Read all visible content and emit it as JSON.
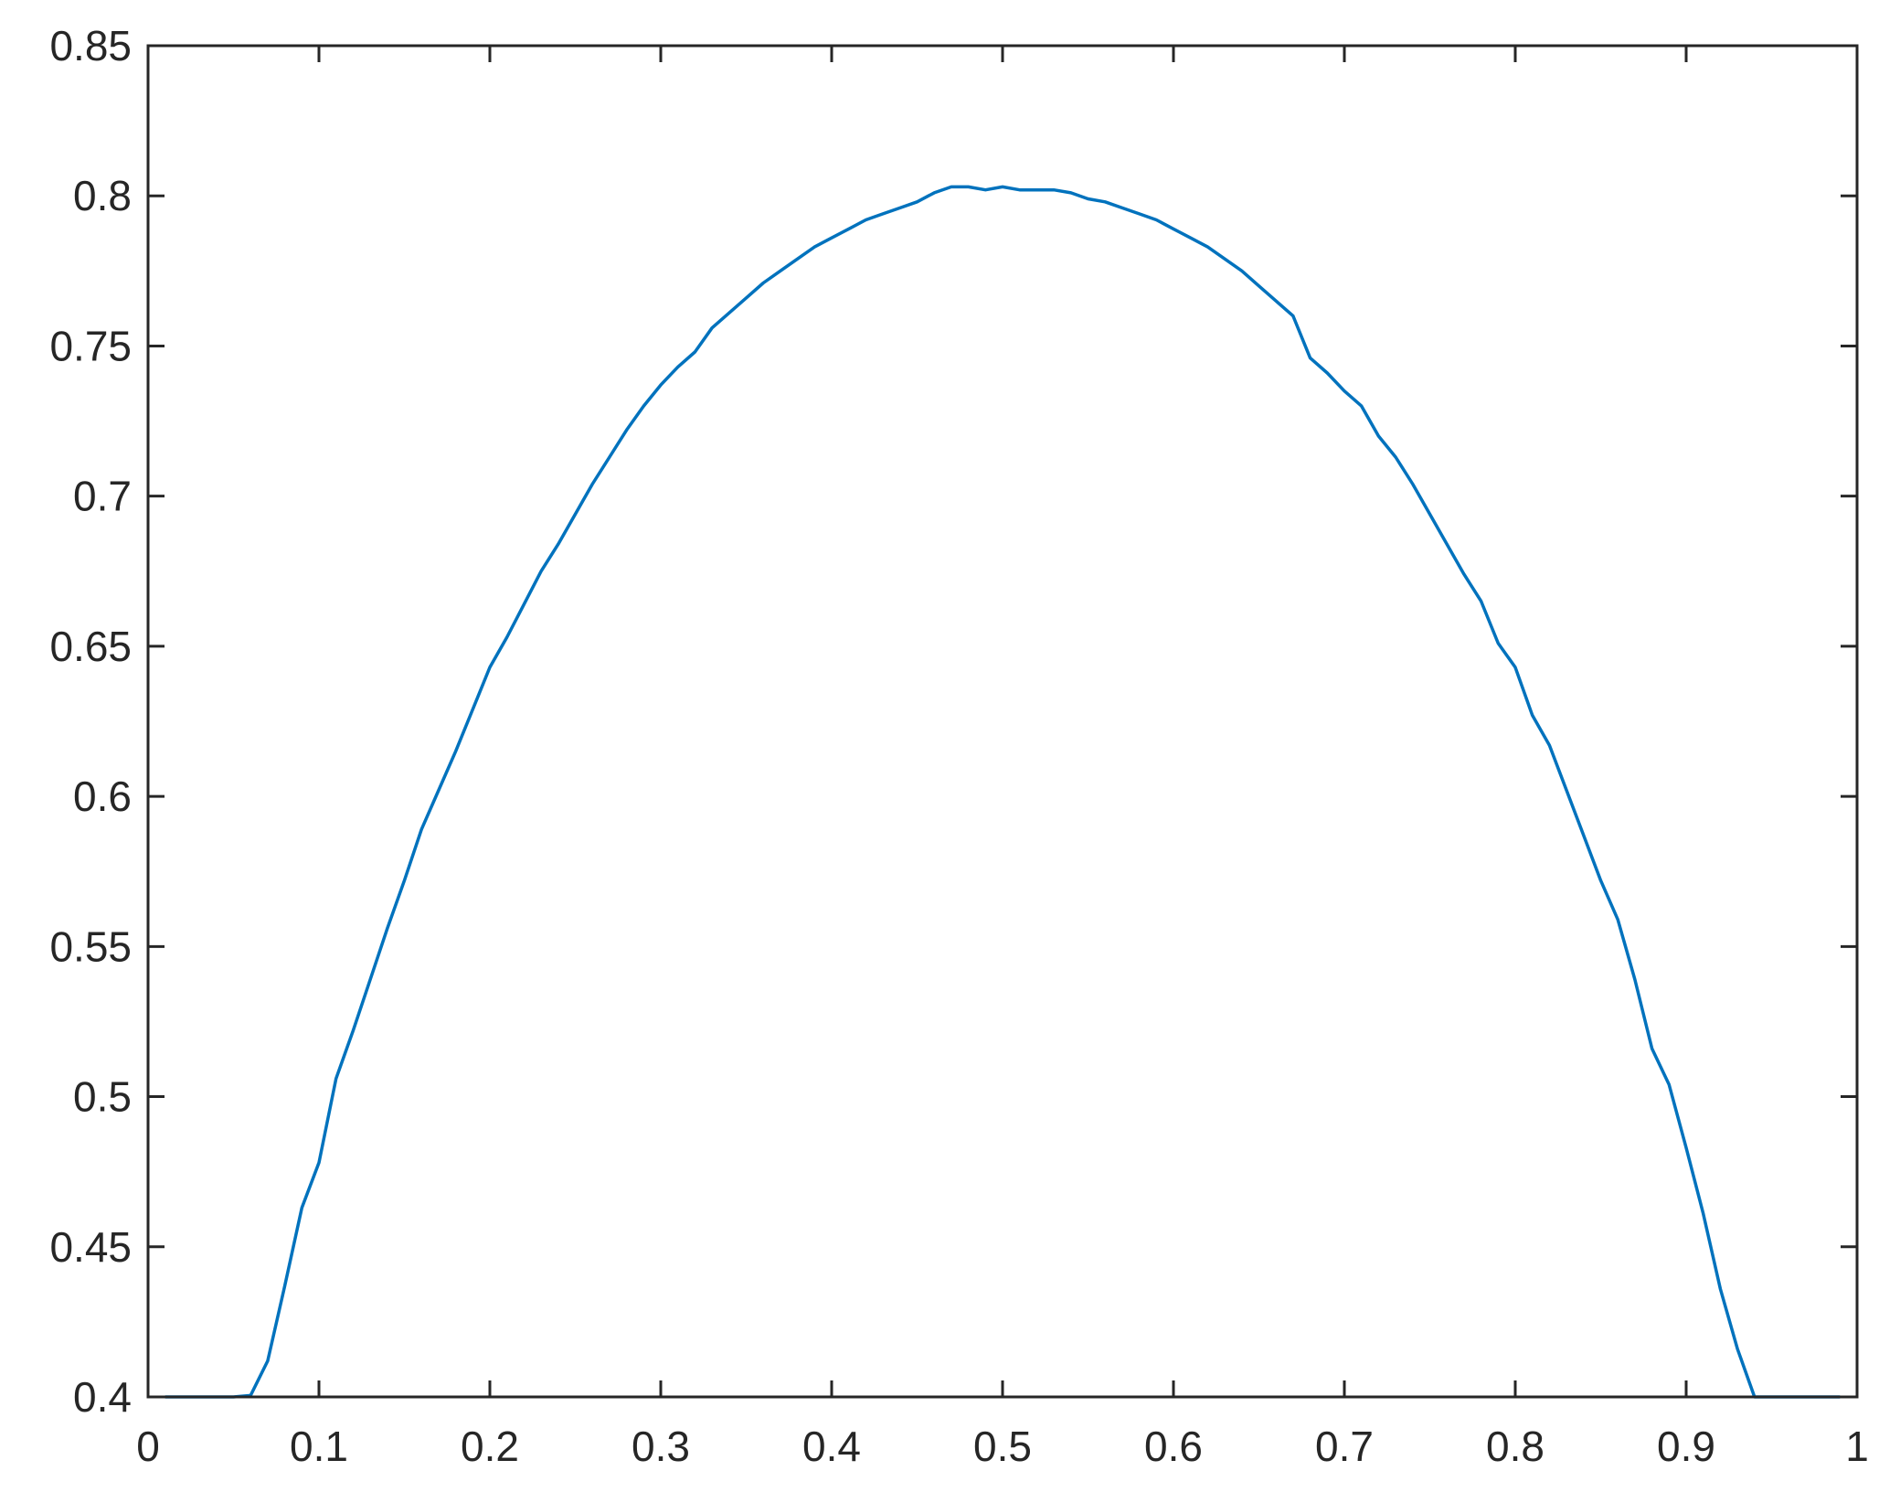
{
  "chart_data": {
    "type": "line",
    "title": "",
    "xlabel": "",
    "ylabel": "",
    "xlim": [
      0,
      1
    ],
    "ylim": [
      0.4,
      0.85
    ],
    "grid": false,
    "box": true,
    "xticks": [
      "0",
      "0.1",
      "0.2",
      "0.3",
      "0.4",
      "0.5",
      "0.6",
      "0.7",
      "0.8",
      "0.9",
      "1"
    ],
    "yticks": [
      "0.4",
      "0.45",
      "0.5",
      "0.55",
      "0.6",
      "0.65",
      "0.7",
      "0.75",
      "0.8",
      "0.85"
    ],
    "colors": {
      "line": "#0072BD",
      "axes": "#262626"
    },
    "series": [
      {
        "x": [
          0.01,
          0.02,
          0.03,
          0.04,
          0.05,
          0.06,
          0.07,
          0.08,
          0.09,
          0.1,
          0.11,
          0.12,
          0.13,
          0.14,
          0.15,
          0.16,
          0.17,
          0.18,
          0.19,
          0.2,
          0.21,
          0.22,
          0.23,
          0.24,
          0.25,
          0.26,
          0.27,
          0.28,
          0.29,
          0.3,
          0.31,
          0.32,
          0.33,
          0.34,
          0.35,
          0.36,
          0.37,
          0.38,
          0.39,
          0.4,
          0.41,
          0.42,
          0.43,
          0.44,
          0.45,
          0.46,
          0.47,
          0.48,
          0.49,
          0.5,
          0.51,
          0.52,
          0.53,
          0.54,
          0.55,
          0.56,
          0.57,
          0.58,
          0.59,
          0.6,
          0.61,
          0.62,
          0.63,
          0.64,
          0.65,
          0.66,
          0.67,
          0.68,
          0.69,
          0.7,
          0.71,
          0.72,
          0.73,
          0.74,
          0.75,
          0.76,
          0.77,
          0.78,
          0.79,
          0.8,
          0.81,
          0.82,
          0.83,
          0.84,
          0.85,
          0.86,
          0.87,
          0.88,
          0.89,
          0.9,
          0.91,
          0.92,
          0.93,
          0.94,
          0.95,
          0.96,
          0.97,
          0.98,
          0.99
        ],
        "y": [
          0.4,
          0.4,
          0.4,
          0.4,
          0.4,
          0.4005,
          0.412,
          0.437,
          0.463,
          0.478,
          0.506,
          0.522,
          0.539,
          0.556,
          0.572,
          0.589,
          0.602,
          0.615,
          0.629,
          0.643,
          0.653,
          0.664,
          0.675,
          0.684,
          0.694,
          0.704,
          0.713,
          0.722,
          0.73,
          0.737,
          0.743,
          0.748,
          0.756,
          0.761,
          0.766,
          0.771,
          0.775,
          0.779,
          0.783,
          0.786,
          0.789,
          0.792,
          0.794,
          0.796,
          0.798,
          0.801,
          0.803,
          0.803,
          0.802,
          0.803,
          0.802,
          0.802,
          0.802,
          0.801,
          0.799,
          0.798,
          0.796,
          0.794,
          0.792,
          0.789,
          0.786,
          0.783,
          0.779,
          0.775,
          0.77,
          0.765,
          0.76,
          0.746,
          0.741,
          0.735,
          0.73,
          0.72,
          0.713,
          0.704,
          0.694,
          0.684,
          0.674,
          0.665,
          0.651,
          0.643,
          0.627,
          0.617,
          0.602,
          0.587,
          0.572,
          0.559,
          0.539,
          0.516,
          0.504,
          0.483,
          0.461,
          0.436,
          0.416,
          0.4,
          0.4,
          0.4,
          0.4,
          0.4,
          0.4
        ]
      }
    ]
  }
}
